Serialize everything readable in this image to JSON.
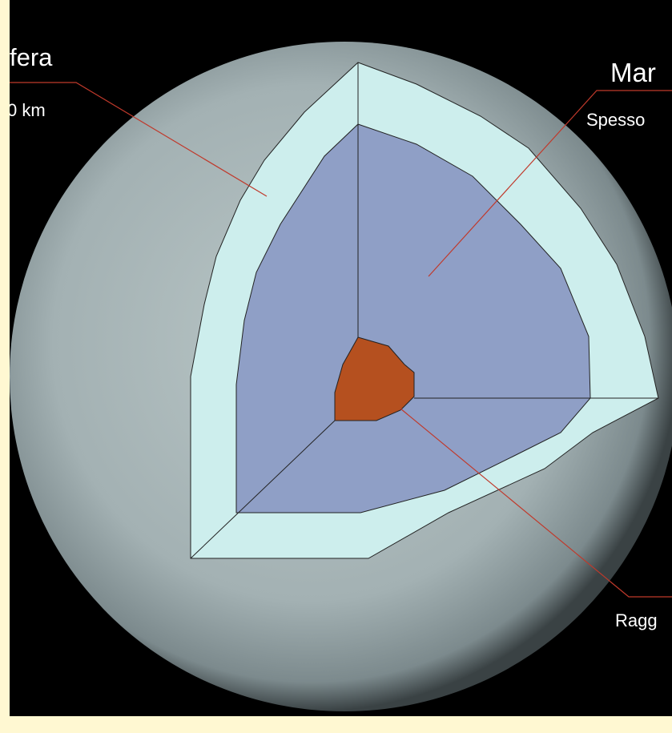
{
  "labels": {
    "left_title": "fera",
    "left_detail": "0 km",
    "right_title": "Mar",
    "right_detail": "Spesso",
    "bottom_detail": "Ragg"
  }
}
